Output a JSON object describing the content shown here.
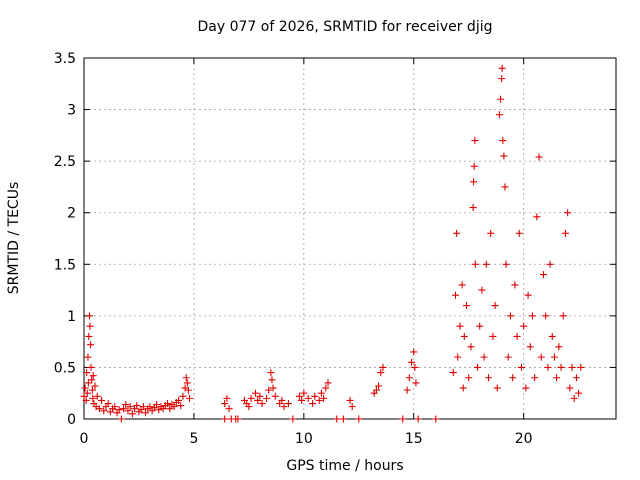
{
  "chart_data": {
    "type": "scatter",
    "title": "Day 077 of 2026, SRMTID for receiver djig",
    "xlabel": "GPS time / hours",
    "ylabel": "SRMTID / TECUs",
    "xlim": [
      0,
      24.2
    ],
    "ylim": [
      0,
      3.5
    ],
    "xticks": [
      0,
      5,
      10,
      15,
      20
    ],
    "xtick_labels": [
      "0",
      "5",
      "10",
      "15",
      "20"
    ],
    "yticks": [
      0,
      0.5,
      1,
      1.5,
      2,
      2.5,
      3,
      3.5
    ],
    "ytick_labels": [
      "0",
      "0.5",
      "1",
      "1.5",
      "2",
      "2.5",
      "3",
      "3.5"
    ],
    "grid": true,
    "marker": "+",
    "color": "#e00000",
    "series": [
      {
        "name": "SRMTID",
        "points": [
          [
            0.0,
            0.22
          ],
          [
            0.05,
            0.3
          ],
          [
            0.1,
            0.18
          ],
          [
            0.12,
            0.45
          ],
          [
            0.15,
            0.25
          ],
          [
            0.18,
            0.6
          ],
          [
            0.2,
            0.35
          ],
          [
            0.22,
            0.8
          ],
          [
            0.25,
            1.0
          ],
          [
            0.27,
            0.9
          ],
          [
            0.3,
            0.72
          ],
          [
            0.32,
            0.5
          ],
          [
            0.35,
            0.38
          ],
          [
            0.38,
            0.28
          ],
          [
            0.4,
            0.2
          ],
          [
            0.42,
            0.42
          ],
          [
            0.45,
            0.15
          ],
          [
            0.5,
            0.32
          ],
          [
            0.55,
            0.12
          ],
          [
            0.6,
            0.22
          ],
          [
            0.7,
            0.1
          ],
          [
            0.8,
            0.18
          ],
          [
            0.9,
            0.08
          ],
          [
            1.0,
            0.12
          ],
          [
            1.1,
            0.15
          ],
          [
            1.2,
            0.07
          ],
          [
            1.3,
            0.1
          ],
          [
            1.4,
            0.12
          ],
          [
            1.5,
            0.06
          ],
          [
            1.6,
            0.09
          ],
          [
            1.7,
            0.0
          ],
          [
            1.8,
            0.1
          ],
          [
            1.9,
            0.14
          ],
          [
            2.0,
            0.08
          ],
          [
            2.1,
            0.12
          ],
          [
            2.2,
            0.05
          ],
          [
            2.3,
            0.1
          ],
          [
            2.4,
            0.13
          ],
          [
            2.5,
            0.07
          ],
          [
            2.6,
            0.09
          ],
          [
            2.7,
            0.12
          ],
          [
            2.8,
            0.06
          ],
          [
            2.9,
            0.1
          ],
          [
            3.0,
            0.12
          ],
          [
            3.1,
            0.08
          ],
          [
            3.2,
            0.11
          ],
          [
            3.3,
            0.14
          ],
          [
            3.4,
            0.09
          ],
          [
            3.5,
            0.12
          ],
          [
            3.6,
            0.1
          ],
          [
            3.7,
            0.13
          ],
          [
            3.8,
            0.15
          ],
          [
            3.9,
            0.1
          ],
          [
            4.0,
            0.14
          ],
          [
            4.1,
            0.12
          ],
          [
            4.2,
            0.16
          ],
          [
            4.3,
            0.18
          ],
          [
            4.4,
            0.13
          ],
          [
            4.5,
            0.22
          ],
          [
            4.6,
            0.3
          ],
          [
            4.65,
            0.4
          ],
          [
            4.7,
            0.35
          ],
          [
            4.75,
            0.28
          ],
          [
            4.8,
            0.2
          ],
          [
            6.4,
            0.15
          ],
          [
            6.5,
            0.2
          ],
          [
            6.6,
            0.1
          ],
          [
            6.4,
            0.0
          ],
          [
            6.7,
            0.0
          ],
          [
            6.9,
            0.0
          ],
          [
            7.0,
            0.0
          ],
          [
            7.3,
            0.18
          ],
          [
            7.4,
            0.15
          ],
          [
            7.5,
            0.12
          ],
          [
            7.6,
            0.2
          ],
          [
            7.8,
            0.25
          ],
          [
            7.9,
            0.18
          ],
          [
            8.0,
            0.22
          ],
          [
            8.1,
            0.15
          ],
          [
            8.3,
            0.2
          ],
          [
            8.4,
            0.28
          ],
          [
            8.5,
            0.45
          ],
          [
            8.55,
            0.38
          ],
          [
            8.6,
            0.3
          ],
          [
            8.7,
            0.22
          ],
          [
            8.9,
            0.15
          ],
          [
            9.0,
            0.18
          ],
          [
            9.1,
            0.12
          ],
          [
            9.3,
            0.15
          ],
          [
            9.5,
            0.0
          ],
          [
            9.8,
            0.22
          ],
          [
            9.9,
            0.18
          ],
          [
            10.0,
            0.25
          ],
          [
            10.2,
            0.2
          ],
          [
            10.4,
            0.15
          ],
          [
            10.5,
            0.22
          ],
          [
            10.7,
            0.18
          ],
          [
            10.8,
            0.25
          ],
          [
            10.9,
            0.2
          ],
          [
            11.0,
            0.3
          ],
          [
            11.1,
            0.35
          ],
          [
            11.5,
            0.0
          ],
          [
            11.8,
            0.0
          ],
          [
            12.1,
            0.18
          ],
          [
            12.2,
            0.12
          ],
          [
            12.5,
            0.0
          ],
          [
            13.2,
            0.25
          ],
          [
            13.3,
            0.28
          ],
          [
            13.4,
            0.32
          ],
          [
            13.5,
            0.45
          ],
          [
            13.6,
            0.5
          ],
          [
            14.5,
            0.0
          ],
          [
            14.7,
            0.28
          ],
          [
            14.8,
            0.4
          ],
          [
            14.9,
            0.55
          ],
          [
            15.0,
            0.65
          ],
          [
            15.05,
            0.5
          ],
          [
            15.1,
            0.35
          ],
          [
            15.2,
            0.0
          ],
          [
            16.0,
            0.0
          ],
          [
            16.8,
            0.45
          ],
          [
            16.9,
            1.2
          ],
          [
            16.95,
            1.8
          ],
          [
            17.0,
            0.6
          ],
          [
            17.1,
            0.9
          ],
          [
            17.2,
            1.3
          ],
          [
            17.25,
            0.3
          ],
          [
            17.3,
            0.8
          ],
          [
            17.4,
            1.1
          ],
          [
            17.5,
            0.4
          ],
          [
            17.6,
            0.7
          ],
          [
            17.7,
            2.05
          ],
          [
            17.72,
            2.3
          ],
          [
            17.75,
            2.45
          ],
          [
            17.78,
            2.7
          ],
          [
            17.8,
            1.5
          ],
          [
            17.9,
            0.5
          ],
          [
            18.0,
            0.9
          ],
          [
            18.1,
            1.25
          ],
          [
            18.2,
            0.6
          ],
          [
            18.3,
            1.5
          ],
          [
            18.4,
            0.4
          ],
          [
            18.5,
            1.8
          ],
          [
            18.6,
            0.8
          ],
          [
            18.7,
            1.1
          ],
          [
            18.8,
            0.3
          ],
          [
            18.9,
            2.95
          ],
          [
            18.95,
            3.1
          ],
          [
            19.0,
            3.3
          ],
          [
            19.02,
            3.4
          ],
          [
            19.05,
            2.7
          ],
          [
            19.1,
            2.55
          ],
          [
            19.15,
            2.25
          ],
          [
            19.2,
            1.5
          ],
          [
            19.3,
            0.6
          ],
          [
            19.4,
            1.0
          ],
          [
            19.5,
            0.4
          ],
          [
            19.6,
            1.3
          ],
          [
            19.7,
            0.8
          ],
          [
            19.8,
            1.8
          ],
          [
            19.9,
            0.5
          ],
          [
            20.0,
            0.9
          ],
          [
            20.1,
            0.3
          ],
          [
            20.2,
            1.2
          ],
          [
            20.3,
            0.7
          ],
          [
            20.4,
            1.0
          ],
          [
            20.5,
            0.4
          ],
          [
            20.6,
            1.96
          ],
          [
            20.7,
            2.54
          ],
          [
            20.8,
            0.6
          ],
          [
            20.9,
            1.4
          ],
          [
            21.0,
            1.0
          ],
          [
            21.1,
            0.5
          ],
          [
            21.2,
            1.5
          ],
          [
            21.3,
            0.8
          ],
          [
            21.4,
            0.6
          ],
          [
            21.5,
            0.4
          ],
          [
            21.6,
            0.7
          ],
          [
            21.7,
            0.5
          ],
          [
            21.8,
            1.0
          ],
          [
            21.9,
            1.8
          ],
          [
            22.0,
            2.0
          ],
          [
            22.1,
            0.3
          ],
          [
            22.2,
            0.5
          ],
          [
            22.3,
            0.2
          ],
          [
            22.4,
            0.4
          ],
          [
            22.5,
            0.25
          ],
          [
            22.6,
            0.5
          ]
        ]
      }
    ]
  }
}
